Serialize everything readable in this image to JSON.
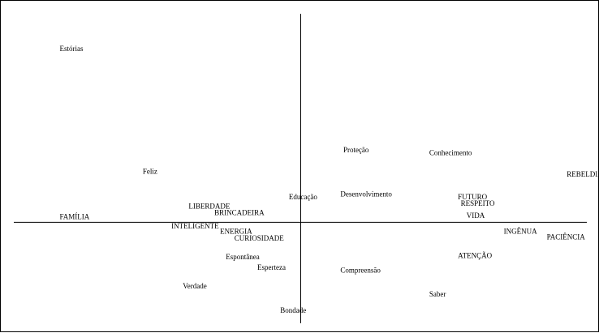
{
  "chart_data": {
    "type": "scatter",
    "title": "",
    "xlabel": "",
    "ylabel": "",
    "xlim": [
      -1.0,
      1.0
    ],
    "ylim": [
      -0.38,
      0.78
    ],
    "grid": false,
    "axes_style": "cross-at-origin",
    "colors": {
      "text": "#000000",
      "axis": "#000000",
      "border": "#000000",
      "background": "#ffffff"
    },
    "points": [
      {
        "label": "Estórias",
        "x": -0.84,
        "y": 0.64
      },
      {
        "label": "Feliz",
        "x": -0.55,
        "y": 0.18
      },
      {
        "label": "Proteção",
        "x": 0.15,
        "y": 0.26
      },
      {
        "label": "Conhecimento",
        "x": 0.45,
        "y": 0.25
      },
      {
        "label": "REBELDIA",
        "x": 0.93,
        "y": 0.17
      },
      {
        "label": "Educação",
        "x": -0.04,
        "y": 0.085
      },
      {
        "label": "Desenvolvimento",
        "x": 0.14,
        "y": 0.095
      },
      {
        "label": "FUTURO",
        "x": 0.55,
        "y": 0.085
      },
      {
        "label": "RESPEITO",
        "x": 0.56,
        "y": 0.06
      },
      {
        "label": "LIBERDADE",
        "x": -0.39,
        "y": 0.05
      },
      {
        "label": "BRINCADEIRA",
        "x": -0.3,
        "y": 0.025
      },
      {
        "label": "VIDA",
        "x": 0.58,
        "y": 0.015
      },
      {
        "label": "FAMÍLIA",
        "x": -0.84,
        "y": 0.01
      },
      {
        "label": "INTELIGENTE",
        "x": -0.45,
        "y": -0.025
      },
      {
        "label": "ENERGIA",
        "x": -0.28,
        "y": -0.045
      },
      {
        "label": "INGÊNUA",
        "x": 0.71,
        "y": -0.045
      },
      {
        "label": "CURIOSIDADE",
        "x": -0.23,
        "y": -0.07
      },
      {
        "label": "PACIÊNCIA",
        "x": 0.86,
        "y": -0.065
      },
      {
        "label": "ATENÇÃO",
        "x": 0.55,
        "y": -0.135
      },
      {
        "label": "Espontânea",
        "x": -0.26,
        "y": -0.14
      },
      {
        "label": "Esperteza",
        "x": -0.15,
        "y": -0.18
      },
      {
        "label": "Compreensão",
        "x": 0.14,
        "y": -0.19
      },
      {
        "label": "Verdade",
        "x": -0.41,
        "y": -0.25
      },
      {
        "label": "Saber",
        "x": 0.45,
        "y": -0.28
      },
      {
        "label": "Bondade",
        "x": -0.07,
        "y": -0.34
      }
    ]
  }
}
